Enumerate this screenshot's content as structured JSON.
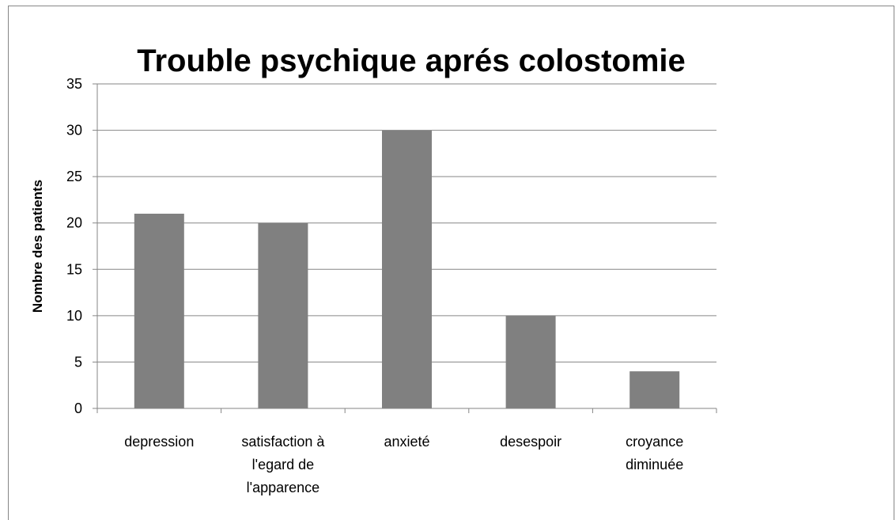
{
  "chart_data": {
    "type": "bar",
    "title": "Trouble psychique  aprés colostomie",
    "y_label": "Nombre des patients",
    "categories": [
      "depression",
      "satisfaction à\nl'egard  de\nl'apparence",
      "anxieté",
      "desespoir",
      "croyance\ndiminuée"
    ],
    "values": [
      21,
      20,
      30,
      10,
      4
    ],
    "color": "#808080",
    "ylim": [
      0,
      35
    ],
    "yticks": [
      0,
      5,
      10,
      15,
      20,
      25,
      30,
      35
    ],
    "grid": true
  }
}
